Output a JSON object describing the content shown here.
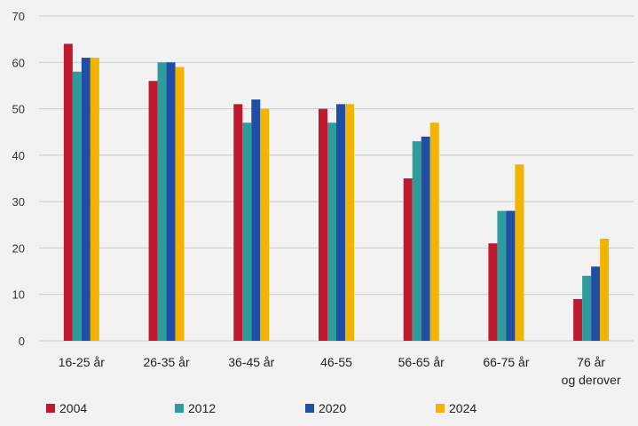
{
  "chart_data": {
    "type": "bar",
    "title": "",
    "xlabel": "",
    "ylabel": "",
    "ylim": [
      0,
      70
    ],
    "yticks": [
      0,
      10,
      20,
      30,
      40,
      50,
      60,
      70
    ],
    "grid": true,
    "legend_position": "bottom",
    "categories": [
      [
        "16-25 år"
      ],
      [
        "26-35 år"
      ],
      [
        "36-45 år"
      ],
      [
        "46-55"
      ],
      [
        "56-65 år"
      ],
      [
        "66-75 år"
      ],
      [
        "76 år",
        "og derover"
      ]
    ],
    "series": [
      {
        "name": "2004",
        "color": "#c0192e",
        "values": [
          64,
          56,
          51,
          50,
          35,
          21,
          9
        ]
      },
      {
        "name": "2012",
        "color": "#2e9c9c",
        "values": [
          58,
          60,
          47,
          47,
          43,
          28,
          14
        ]
      },
      {
        "name": "2020",
        "color": "#1f4ea3",
        "values": [
          61,
          60,
          52,
          51,
          44,
          28,
          16
        ]
      },
      {
        "name": "2024",
        "color": "#f2b400",
        "values": [
          61,
          59,
          50,
          51,
          47,
          38,
          22
        ]
      }
    ]
  }
}
